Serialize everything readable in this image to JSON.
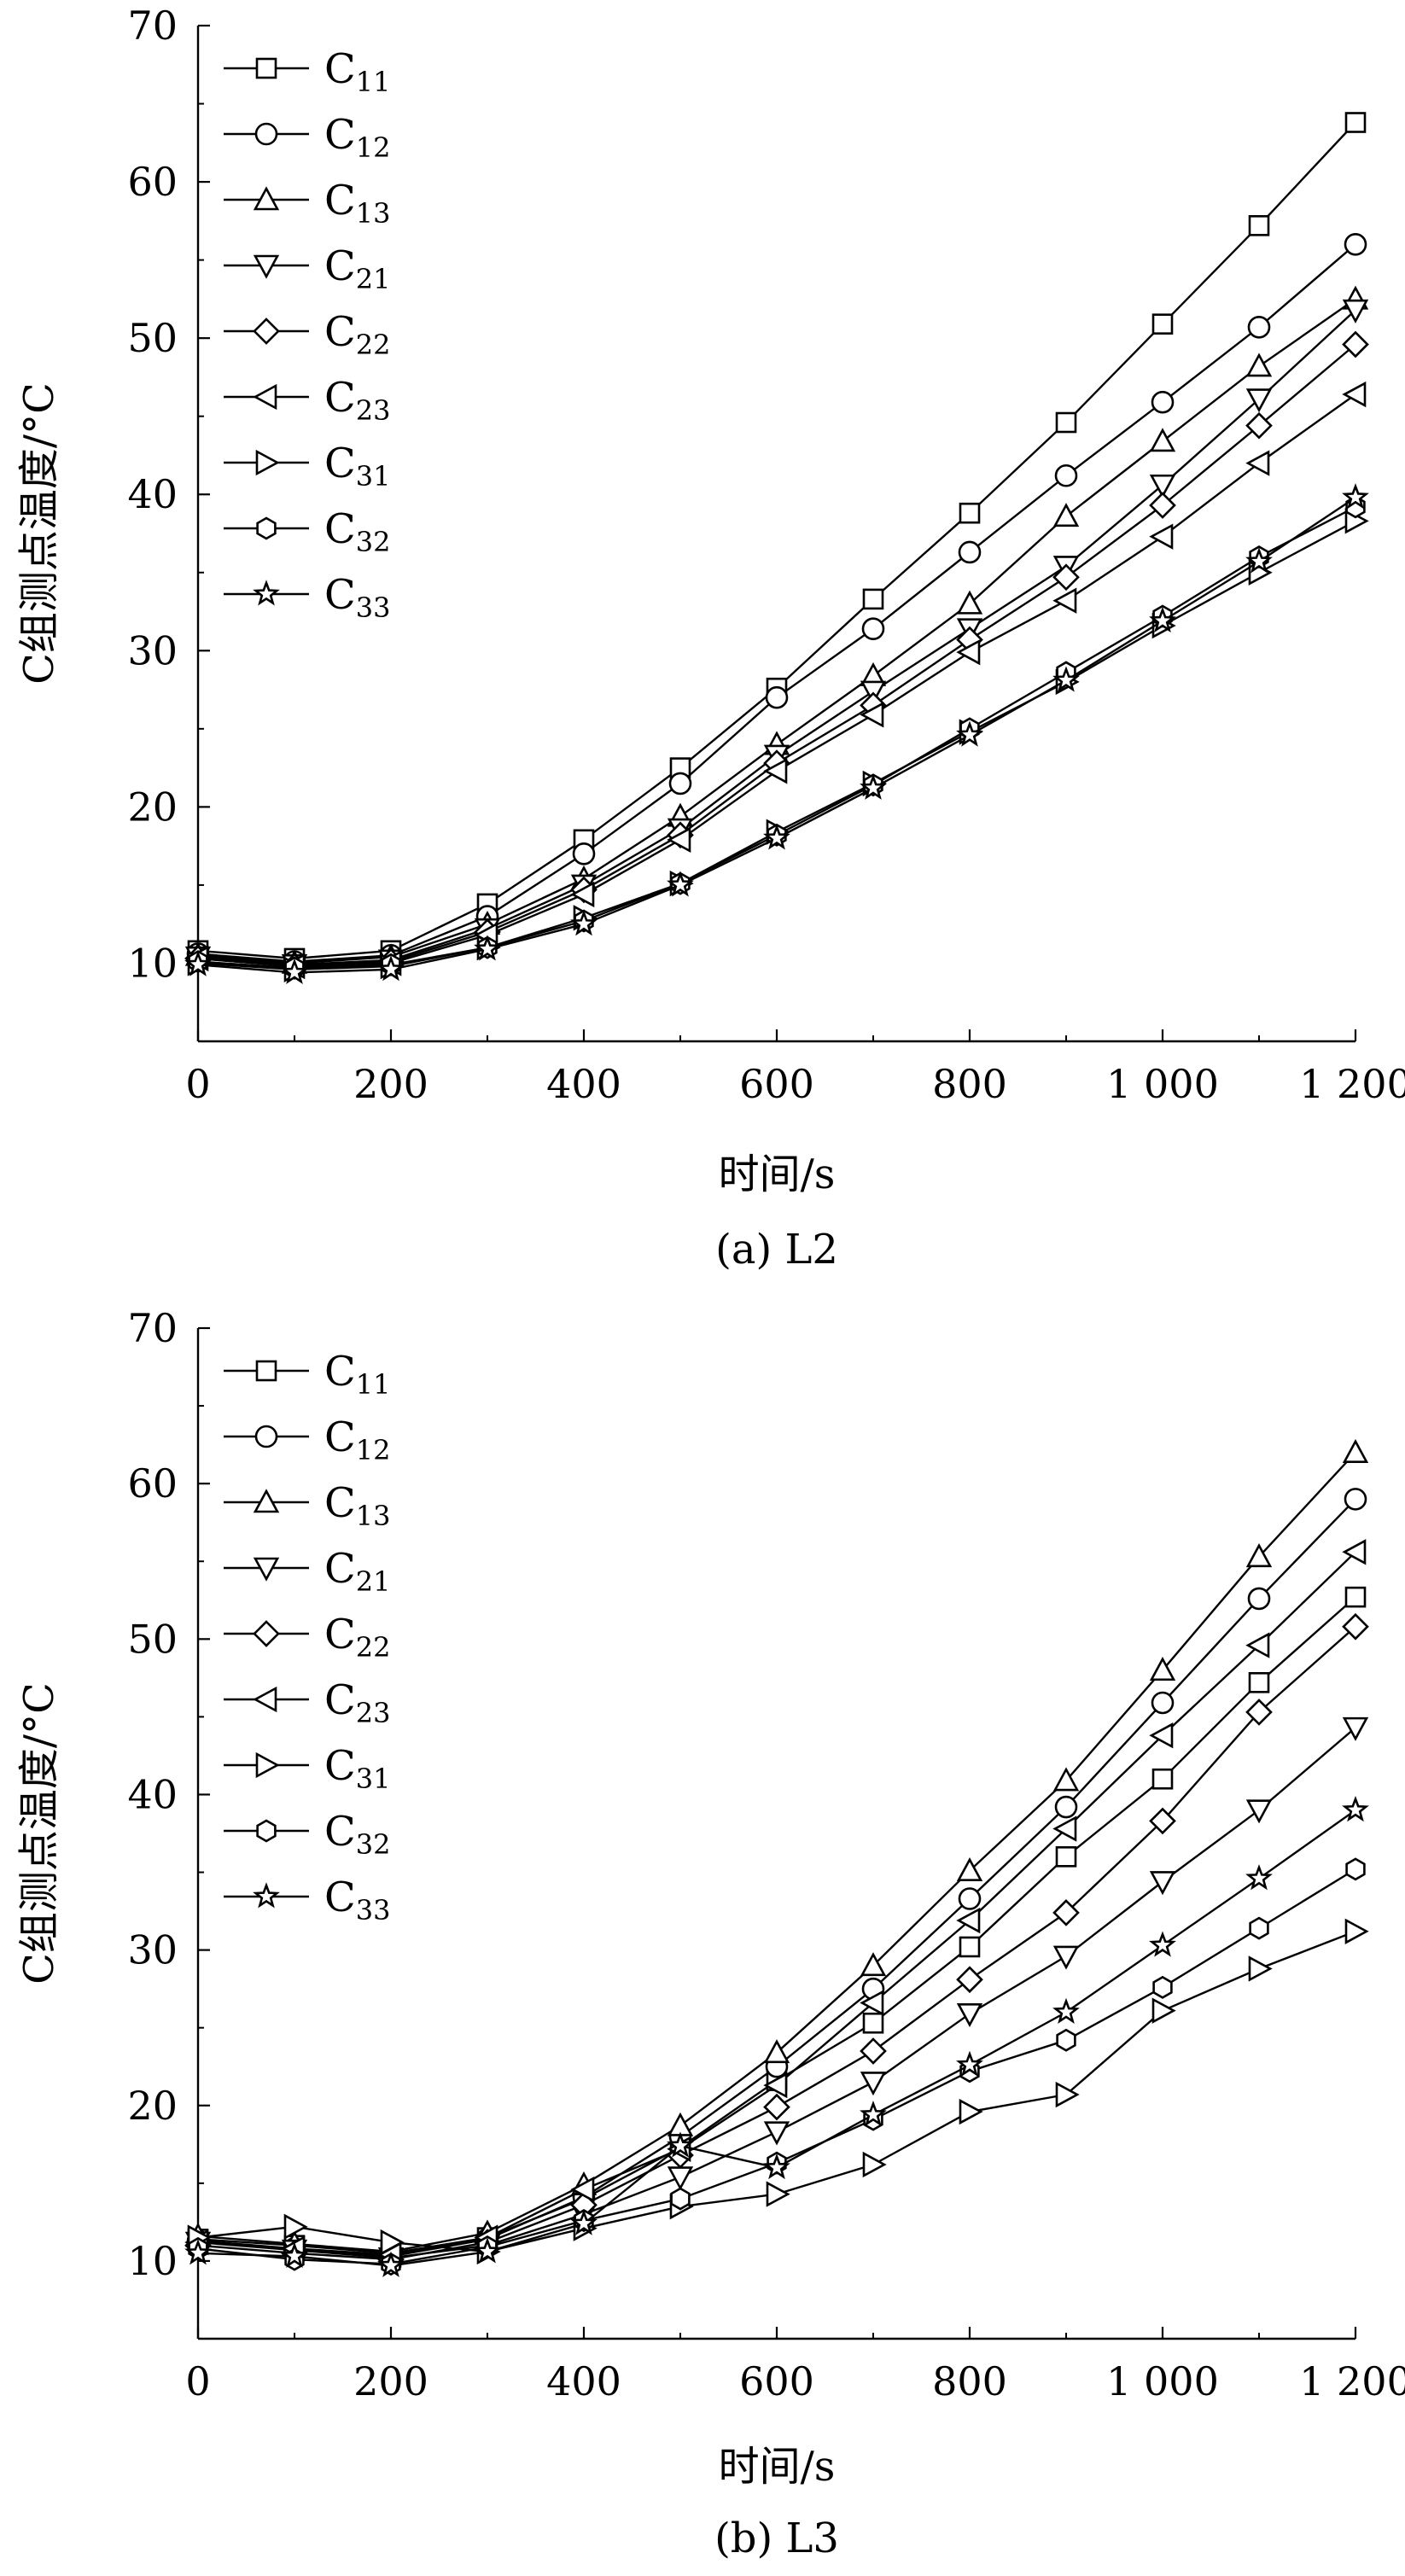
{
  "chart_data": [
    {
      "type": "line",
      "caption": "(a) L2",
      "xlabel": "时间/s",
      "ylabel": "C组测点温度/°C",
      "xlim": [
        0,
        1200
      ],
      "ylim": [
        5,
        70
      ],
      "xticks": [
        0,
        200,
        400,
        600,
        800,
        1000,
        1200
      ],
      "xtick_labels": [
        "0",
        "200",
        "400",
        "600",
        "800",
        "1 000",
        "1 200"
      ],
      "yticks": [
        10,
        20,
        30,
        40,
        50,
        60,
        70
      ],
      "ytick_labels": [
        "10",
        "20",
        "30",
        "40",
        "50",
        "60",
        "70"
      ],
      "grid": false,
      "legend_position": "top-left",
      "x": [
        0,
        100,
        200,
        300,
        400,
        500,
        600,
        700,
        800,
        900,
        1000,
        1100,
        1200
      ],
      "series": [
        {
          "name": "C",
          "sub": "11",
          "marker": "square",
          "values": [
            10.8,
            10.3,
            10.8,
            13.8,
            17.9,
            22.5,
            27.6,
            33.3,
            38.8,
            44.6,
            50.9,
            57.2,
            63.8
          ]
        },
        {
          "name": "C",
          "sub": "12",
          "marker": "circle",
          "values": [
            10.6,
            10.1,
            10.5,
            13.0,
            17.0,
            21.5,
            27.0,
            31.4,
            36.3,
            41.2,
            45.9,
            50.7,
            56.0
          ]
        },
        {
          "name": "C",
          "sub": "13",
          "marker": "triangle-up",
          "values": [
            10.5,
            10.0,
            10.4,
            12.5,
            15.4,
            19.4,
            24.0,
            28.4,
            33.0,
            38.6,
            43.4,
            48.2,
            52.5
          ]
        },
        {
          "name": "C",
          "sub": "21",
          "marker": "triangle-down",
          "values": [
            10.4,
            9.9,
            10.2,
            12.2,
            15.0,
            18.6,
            23.3,
            27.4,
            31.4,
            35.4,
            40.6,
            46.1,
            51.8
          ]
        },
        {
          "name": "C",
          "sub": "22",
          "marker": "diamond",
          "values": [
            10.3,
            9.8,
            10.1,
            12.0,
            14.7,
            18.2,
            22.8,
            26.5,
            30.7,
            34.7,
            39.3,
            44.4,
            49.6
          ]
        },
        {
          "name": "C",
          "sub": "23",
          "marker": "triangle-left",
          "values": [
            10.3,
            9.8,
            10.0,
            11.8,
            14.4,
            17.9,
            22.3,
            25.9,
            29.9,
            33.2,
            37.3,
            42.0,
            46.4
          ]
        },
        {
          "name": "C",
          "sub": "31",
          "marker": "triangle-right",
          "values": [
            10.0,
            9.6,
            9.8,
            11.0,
            12.9,
            15.1,
            18.4,
            21.5,
            24.8,
            28.0,
            31.6,
            35.0,
            38.3
          ]
        },
        {
          "name": "C",
          "sub": "32",
          "marker": "hexagon",
          "values": [
            10.1,
            9.7,
            9.9,
            11.0,
            12.7,
            15.1,
            18.2,
            21.4,
            25.0,
            28.6,
            32.2,
            36.0,
            39.2
          ]
        },
        {
          "name": "C",
          "sub": "33",
          "marker": "star",
          "values": [
            9.9,
            9.4,
            9.6,
            10.9,
            12.5,
            15.0,
            18.0,
            21.2,
            24.6,
            28.1,
            31.9,
            35.7,
            39.8
          ]
        }
      ]
    },
    {
      "type": "line",
      "caption": "(b) L3",
      "xlabel": "时间/s",
      "ylabel": "C组测点温度/°C",
      "xlim": [
        0,
        1200
      ],
      "ylim": [
        5,
        70
      ],
      "xticks": [
        0,
        200,
        400,
        600,
        800,
        1000,
        1200
      ],
      "xtick_labels": [
        "0",
        "200",
        "400",
        "600",
        "800",
        "1 000",
        "1 200"
      ],
      "yticks": [
        10,
        20,
        30,
        40,
        50,
        60,
        70
      ],
      "ytick_labels": [
        "10",
        "20",
        "30",
        "40",
        "50",
        "60",
        "70"
      ],
      "grid": false,
      "legend_position": "top-left",
      "x": [
        0,
        100,
        200,
        300,
        400,
        500,
        600,
        700,
        800,
        900,
        1000,
        1100,
        1200
      ],
      "series": [
        {
          "name": "C",
          "sub": "11",
          "marker": "square",
          "values": [
            11.4,
            11.0,
            10.5,
            11.5,
            14.0,
            17.3,
            21.6,
            25.3,
            30.2,
            36.0,
            41.0,
            47.2,
            52.7
          ]
        },
        {
          "name": "C",
          "sub": "12",
          "marker": "circle",
          "values": [
            11.3,
            10.8,
            10.3,
            11.4,
            14.1,
            18.0,
            22.5,
            27.5,
            33.3,
            39.2,
            45.9,
            52.6,
            59.0
          ]
        },
        {
          "name": "C",
          "sub": "13",
          "marker": "triangle-up",
          "values": [
            11.6,
            11.1,
            10.6,
            11.8,
            14.9,
            18.7,
            23.4,
            29.0,
            35.1,
            40.9,
            48.0,
            55.3,
            62.0
          ]
        },
        {
          "name": "C",
          "sub": "21",
          "marker": "triangle-down",
          "values": [
            11.2,
            10.7,
            10.2,
            11.0,
            13.0,
            15.4,
            18.3,
            21.5,
            25.9,
            29.6,
            34.4,
            39.0,
            44.3
          ]
        },
        {
          "name": "C",
          "sub": "22",
          "marker": "diamond",
          "values": [
            11.0,
            10.5,
            10.1,
            11.2,
            13.6,
            16.8,
            19.9,
            23.5,
            28.1,
            32.4,
            38.3,
            45.3,
            50.8
          ]
        },
        {
          "name": "C",
          "sub": "23",
          "marker": "triangle-left",
          "values": [
            11.2,
            10.8,
            10.4,
            11.5,
            14.6,
            17.2,
            21.3,
            26.6,
            31.9,
            37.8,
            43.8,
            49.6,
            55.6
          ]
        },
        {
          "name": "C",
          "sub": "31",
          "marker": "triangle-right",
          "values": [
            11.5,
            12.2,
            11.2,
            10.6,
            12.1,
            13.5,
            14.3,
            16.2,
            19.6,
            20.7,
            26.1,
            28.8,
            31.2
          ]
        },
        {
          "name": "C",
          "sub": "32",
          "marker": "hexagon",
          "values": [
            10.8,
            10.1,
            9.8,
            10.9,
            12.6,
            14.0,
            16.3,
            19.1,
            22.2,
            24.2,
            27.6,
            31.4,
            35.2
          ]
        },
        {
          "name": "C",
          "sub": "33",
          "marker": "star",
          "values": [
            10.5,
            10.3,
            9.7,
            10.6,
            12.4,
            17.4,
            16.0,
            19.4,
            22.6,
            26.0,
            30.3,
            34.6,
            39.0
          ]
        }
      ]
    }
  ]
}
